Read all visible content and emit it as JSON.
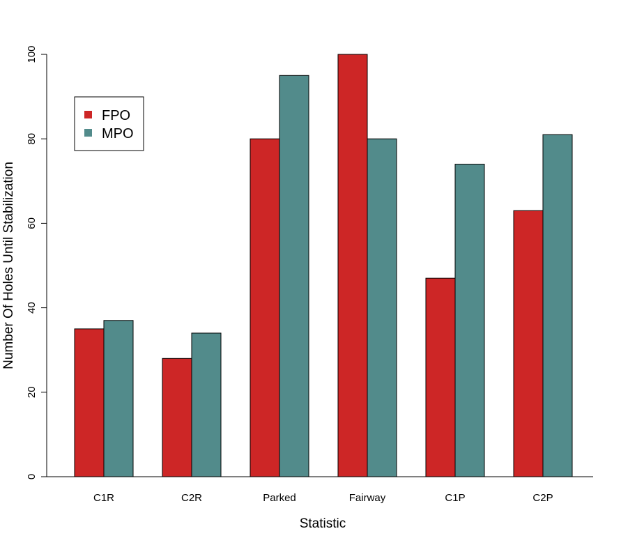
{
  "chart_data": {
    "type": "bar",
    "title": "",
    "xlabel": "Statistic",
    "ylabel": "Number Of Holes Until Stabilization",
    "categories": [
      "C1R",
      "C2R",
      "Parked",
      "Fairway",
      "C1P",
      "C2P"
    ],
    "series": [
      {
        "name": "FPO",
        "color": "#cd2626",
        "values": [
          35,
          28,
          80,
          100,
          47,
          63
        ]
      },
      {
        "name": "MPO",
        "color": "#528b8b",
        "values": [
          37,
          34,
          95,
          80,
          74,
          81
        ]
      }
    ],
    "ylim": [
      0,
      100
    ],
    "yticks": [
      0,
      20,
      40,
      60,
      80,
      100
    ],
    "grid": false,
    "legend_position": "top-left"
  }
}
